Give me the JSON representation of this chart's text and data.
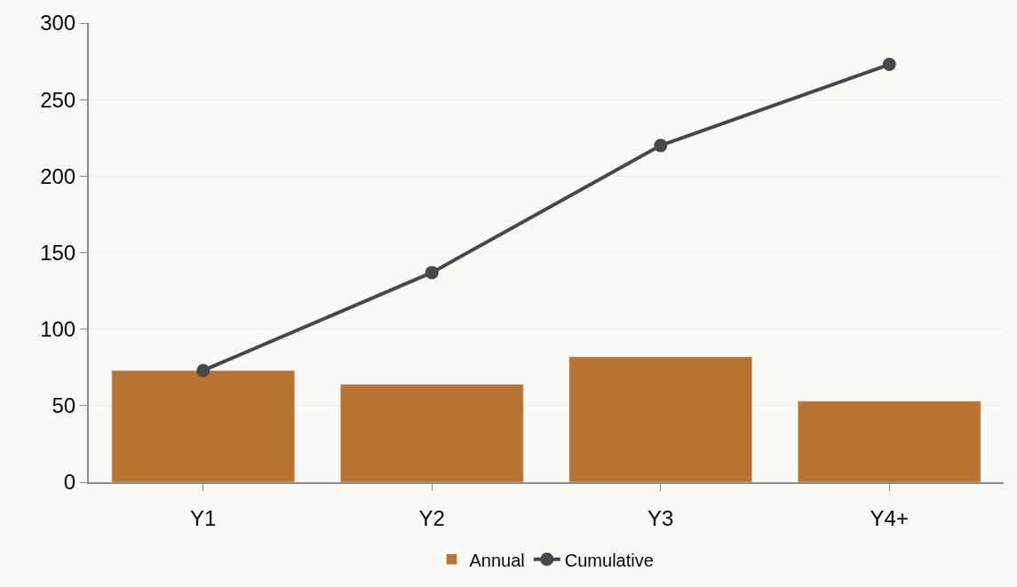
{
  "chart_data": {
    "type": "bar",
    "categories": [
      "Y1",
      "Y2",
      "Y3",
      "Y4+"
    ],
    "series": [
      {
        "name": "Annual",
        "color": "#b87333",
        "values": [
          73,
          64,
          82,
          53
        ]
      },
      {
        "name": "Cumulative",
        "type": "line",
        "color": "#474747",
        "values": [
          73,
          137,
          220,
          273
        ]
      }
    ],
    "ylim": [
      0,
      300
    ],
    "yticks": [
      0,
      50,
      100,
      150,
      200,
      250,
      300
    ],
    "grid": "y",
    "legend": "bottom",
    "marker": "circle",
    "line_style": "solid"
  }
}
